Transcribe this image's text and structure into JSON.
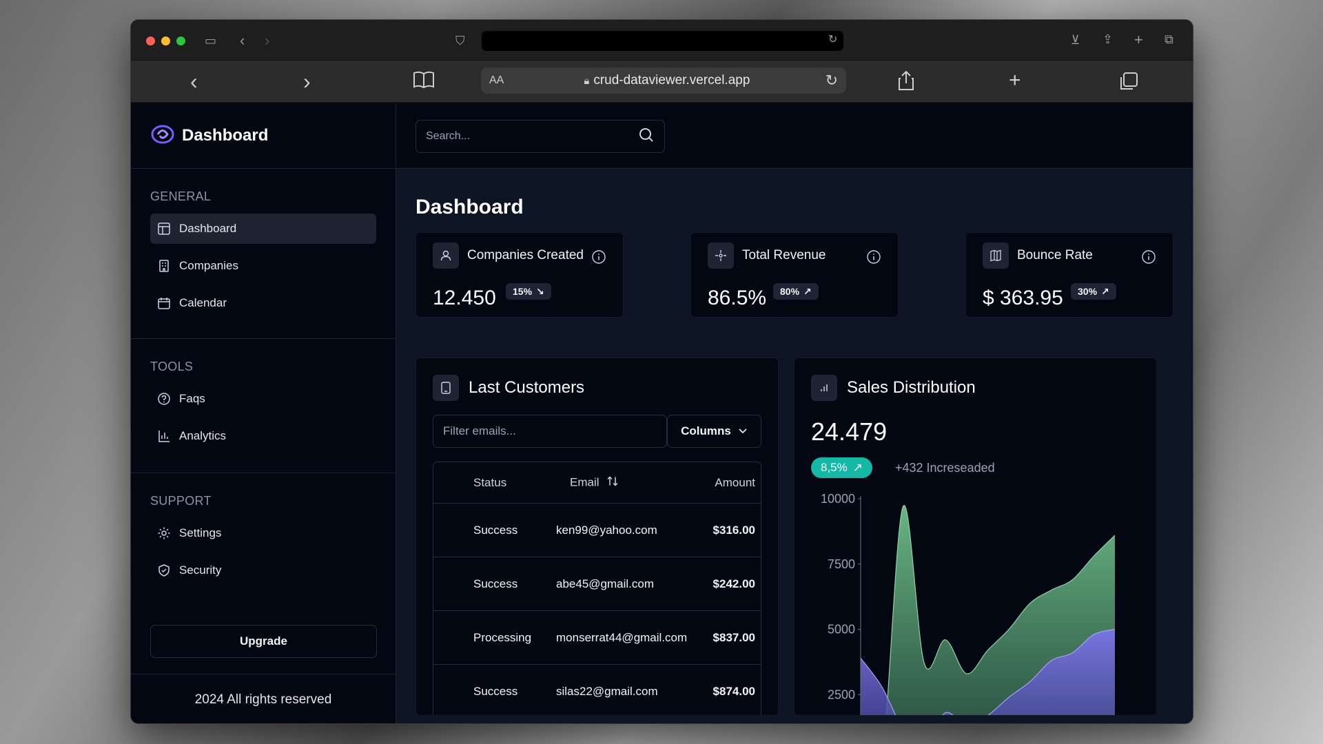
{
  "browser": {
    "url": "crud-dataviewer.vercel.app",
    "text_size_label": "AA"
  },
  "sidebar": {
    "brand": "Dashboard",
    "sections": [
      {
        "heading": "GENERAL",
        "items": [
          {
            "label": "Dashboard",
            "icon": "layout-icon",
            "active": true
          },
          {
            "label": "Companies",
            "icon": "building-icon"
          },
          {
            "label": "Calendar",
            "icon": "calendar-icon"
          }
        ]
      },
      {
        "heading": "TOOLS",
        "items": [
          {
            "label": "Faqs",
            "icon": "help-circle-icon"
          },
          {
            "label": "Analytics",
            "icon": "bar-chart-icon"
          }
        ]
      },
      {
        "heading": "SUPPORT",
        "items": [
          {
            "label": "Settings",
            "icon": "gear-icon"
          },
          {
            "label": "Security",
            "icon": "shield-icon"
          }
        ]
      }
    ],
    "upgrade_label": "Upgrade",
    "copyright": "2024 All rights reserved"
  },
  "header": {
    "search_placeholder": "Search..."
  },
  "page": {
    "title": "Dashboard"
  },
  "stats": [
    {
      "title": "Companies Created",
      "value": "12.450",
      "badge": "15%",
      "trend": "down"
    },
    {
      "title": "Total Revenue",
      "value": "86.5%",
      "badge": "80%",
      "trend": "up"
    },
    {
      "title": "Bounce Rate",
      "value": "$ 363.95",
      "badge": "30%",
      "trend": "up"
    }
  ],
  "customers": {
    "title": "Last Customers",
    "filter_placeholder": "Filter emails...",
    "columns_label": "Columns",
    "headers": {
      "status": "Status",
      "email": "Email",
      "amount": "Amount"
    },
    "rows": [
      {
        "status": "Success",
        "email": "ken99@yahoo.com",
        "amount": "$316.00"
      },
      {
        "status": "Success",
        "email": "abe45@gmail.com",
        "amount": "$242.00"
      },
      {
        "status": "Processing",
        "email": "monserrat44@gmail.com",
        "amount": "$837.00"
      },
      {
        "status": "Success",
        "email": "silas22@gmail.com",
        "amount": "$874.00"
      }
    ]
  },
  "sales": {
    "title": "Sales Distribution",
    "value": "24.479",
    "badge": "8,5%",
    "increase_text": "+432 Increseaded"
  },
  "colors": {
    "accent_teal": "#14b8a6",
    "series_green": "#5fa37a",
    "series_purple": "#6d6ad8",
    "brand_purple": "#7c5cff"
  },
  "chart_data": {
    "type": "area",
    "x": [
      0,
      1,
      2,
      3,
      4,
      5,
      6,
      7,
      8,
      9,
      10,
      11,
      12
    ],
    "series": [
      {
        "values": [
          0,
          0,
          9700,
          3700,
          4600,
          3300,
          4200,
          5000,
          6000,
          6500,
          6900,
          7800,
          8600
        ]
      },
      {
        "values": [
          3900,
          2800,
          1200,
          600,
          1800,
          1300,
          1700,
          2400,
          3000,
          3800,
          4100,
          4800,
          5000
        ]
      }
    ],
    "yticks": [
      "10000",
      "7500",
      "5000",
      "2500"
    ],
    "ylim": [
      0,
      10000
    ]
  }
}
